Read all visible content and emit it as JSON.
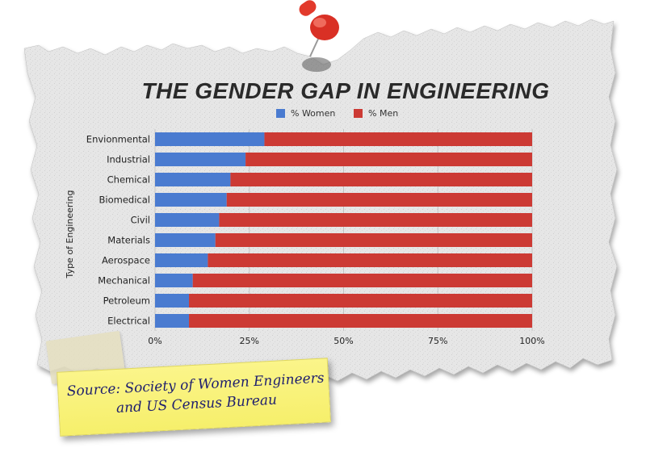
{
  "chart_data": {
    "type": "bar",
    "orientation": "horizontal",
    "stacked": true,
    "title": "THE GENDER GAP IN ENGINEERING",
    "ylabel": "Type of Engineering",
    "xlabel": "",
    "xlim": [
      0,
      100
    ],
    "x_ticks": [
      "0%",
      "25%",
      "50%",
      "75%",
      "100%"
    ],
    "legend_position": "top",
    "categories": [
      "Envionmental",
      "Industrial",
      "Chemical",
      "Biomedical",
      "Civil",
      "Materials",
      "Aerospace",
      "Mechanical",
      "Petroleum",
      "Electrical"
    ],
    "series": [
      {
        "name": "% Women",
        "color": "#4a7bd0",
        "values": [
          29,
          24,
          20,
          19,
          17,
          16,
          14,
          10,
          9,
          9
        ]
      },
      {
        "name": "% Men",
        "color": "#cc3a34",
        "values": [
          71,
          76,
          80,
          81,
          83,
          84,
          86,
          90,
          91,
          91
        ]
      }
    ],
    "grid": true
  },
  "note": {
    "text": "Source: Society of  Women Engineers\nand US Census Bureau"
  },
  "decorations": {
    "paper_color": "#e4e4e4",
    "pin_color": "#e23a2c",
    "icons": [
      "push-pin-icon",
      "tape-strip"
    ]
  }
}
